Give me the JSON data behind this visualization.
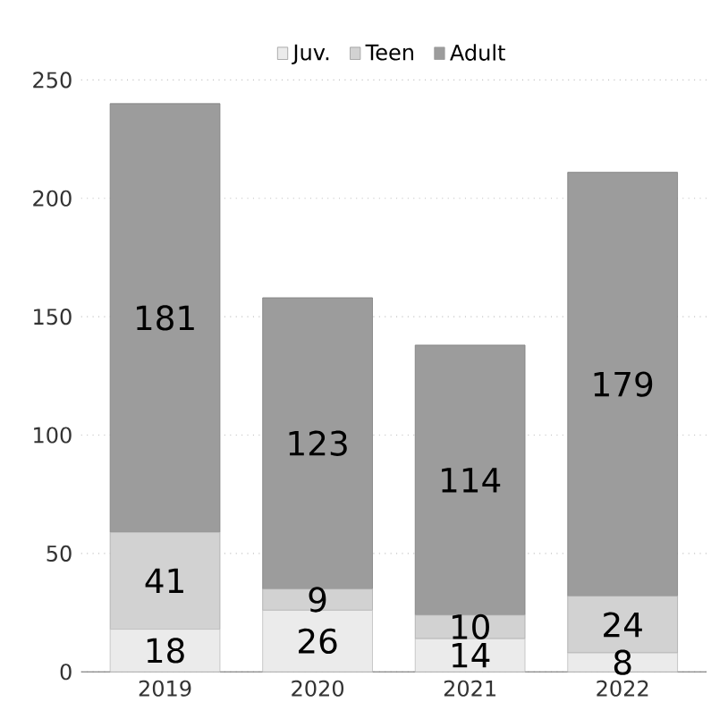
{
  "chart_data": {
    "type": "bar",
    "stacked": true,
    "categories": [
      "2019",
      "2020",
      "2021",
      "2022"
    ],
    "series": [
      {
        "name": "Juv.",
        "color": "#ebebeb",
        "values": [
          18,
          26,
          14,
          8
        ]
      },
      {
        "name": "Teen",
        "color": "#d2d2d2",
        "values": [
          41,
          9,
          10,
          24
        ]
      },
      {
        "name": "Adult",
        "color": "#9c9c9c",
        "values": [
          181,
          123,
          114,
          179
        ]
      }
    ],
    "ylim": [
      0,
      250
    ],
    "yticks": [
      0,
      50,
      100,
      150,
      200,
      250
    ],
    "grid": "y",
    "legend": "top",
    "data_labels": true
  }
}
